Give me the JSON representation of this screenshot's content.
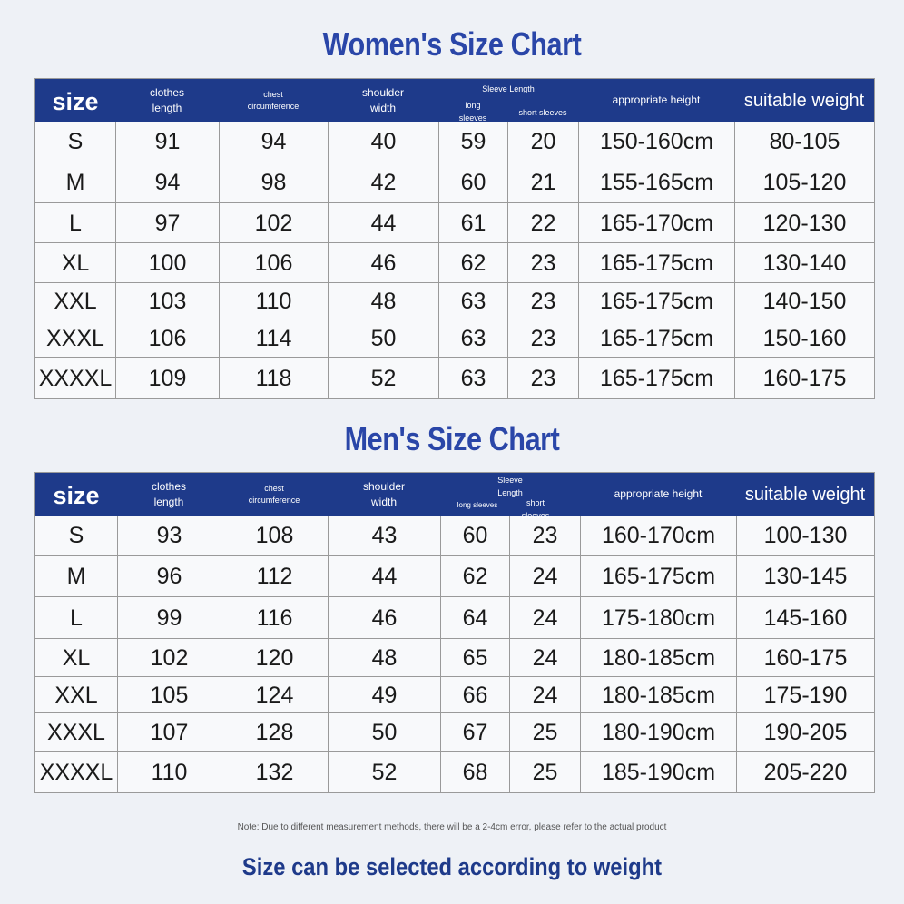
{
  "women": {
    "title": "Women's Size Chart",
    "header": {
      "size": "size",
      "clothes_length": "clothes\nlength",
      "chest": "chest\ncircumference",
      "shoulder": "shoulder\nwidth",
      "sleeve_length": "Sleeve Length",
      "long_sleeves": "long\nsleeves",
      "short_sleeves": "short sleeves",
      "height": "appropriate height",
      "weight": "suitable weight"
    },
    "rows": [
      [
        "S",
        "91",
        "94",
        "40",
        "59",
        "20",
        "150-160cm",
        "80-105"
      ],
      [
        "M",
        "94",
        "98",
        "42",
        "60",
        "21",
        "155-165cm",
        "105-120"
      ],
      [
        "L",
        "97",
        "102",
        "44",
        "61",
        "22",
        "165-170cm",
        "120-130"
      ],
      [
        "XL",
        "100",
        "106",
        "46",
        "62",
        "23",
        "165-175cm",
        "130-140"
      ],
      [
        "XXL",
        "103",
        "110",
        "48",
        "63",
        "23",
        "165-175cm",
        "140-150"
      ],
      [
        "XXXL",
        "106",
        "114",
        "50",
        "63",
        "23",
        "165-175cm",
        "150-160"
      ],
      [
        "XXXXL",
        "109",
        "118",
        "52",
        "63",
        "23",
        "165-175cm",
        "160-175"
      ]
    ]
  },
  "men": {
    "title": "Men's Size Chart",
    "header": {
      "size": "size",
      "clothes_length": "clothes\nlength",
      "chest": "chest\ncircumference",
      "shoulder": "shoulder\nwidth",
      "sleeve_length": "Sleeve\nLength",
      "long_sleeves": "long sleeves",
      "short_sleeves": "short\nsleeves",
      "height": "appropriate height",
      "weight": "suitable weight"
    },
    "rows": [
      [
        "S",
        "93",
        "108",
        "43",
        "60",
        "23",
        "160-170cm",
        "100-130"
      ],
      [
        "M",
        "96",
        "112",
        "44",
        "62",
        "24",
        "165-175cm",
        "130-145"
      ],
      [
        "L",
        "99",
        "116",
        "46",
        "64",
        "24",
        "175-180cm",
        "145-160"
      ],
      [
        "XL",
        "102",
        "120",
        "48",
        "65",
        "24",
        "180-185cm",
        "160-175"
      ],
      [
        "XXL",
        "105",
        "124",
        "49",
        "66",
        "24",
        "180-185cm",
        "175-190"
      ],
      [
        "XXXL",
        "107",
        "128",
        "50",
        "67",
        "25",
        "180-190cm",
        "190-205"
      ],
      [
        "XXXXL",
        "110",
        "132",
        "52",
        "68",
        "25",
        "185-190cm",
        "205-220"
      ]
    ]
  },
  "note": "Note: Due to different measurement methods, there will be a 2-4cm error, please refer to the actual product",
  "footer": "Size can be selected according to weight",
  "colors": {
    "accent": "#2a46a8",
    "header_bg": "#1e3a8a",
    "grid": "#9a9a9a"
  }
}
